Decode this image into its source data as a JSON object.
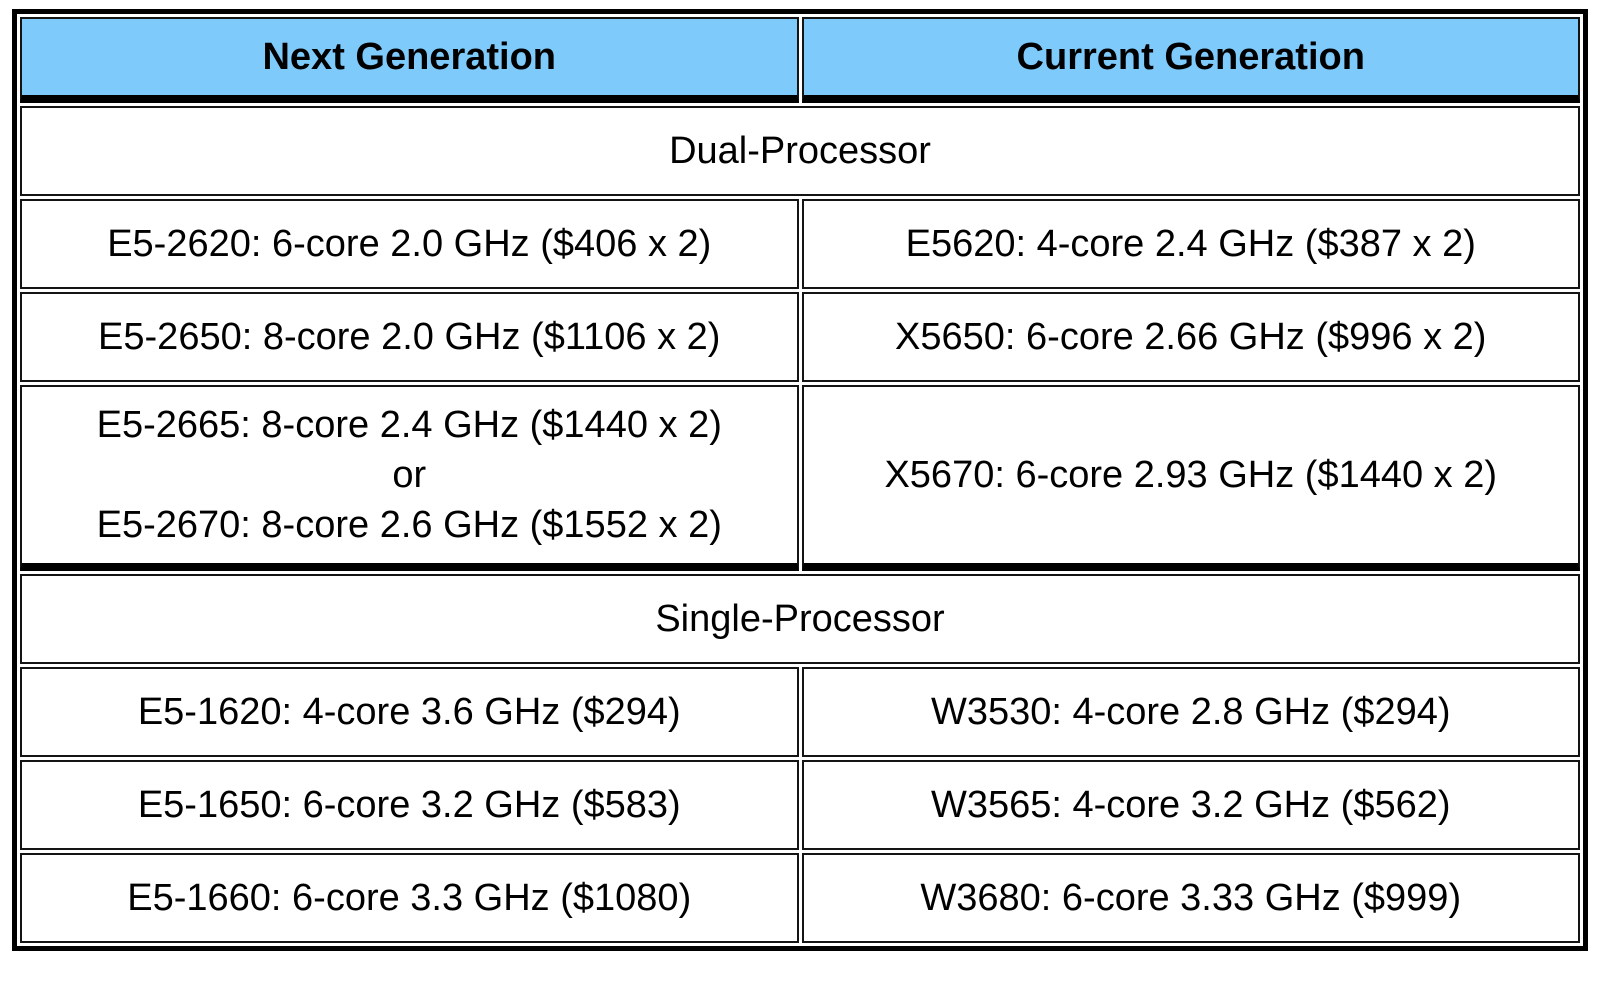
{
  "chart_data": {
    "type": "table",
    "columns": [
      "Next Generation",
      "Current Generation"
    ],
    "sections": [
      {
        "title": "Dual-Processor",
        "rows": [
          {
            "next": "E5-2620: 6-core 2.0 GHz ($406 x 2)",
            "current": "E5620: 4-core 2.4 GHz ($387 x 2)"
          },
          {
            "next": "E5-2650: 8-core 2.0 GHz ($1106 x 2)",
            "current": "X5650: 6-core 2.66 GHz ($996 x 2)"
          },
          {
            "next_lines": [
              "E5-2665: 8-core 2.4 GHz ($1440 x 2)",
              "or",
              "E5-2670: 8-core 2.6 GHz ($1552 x 2)"
            ],
            "current": "X5670: 6-core 2.93 GHz ($1440 x 2)"
          }
        ]
      },
      {
        "title": "Single-Processor",
        "rows": [
          {
            "next": "E5-1620: 4-core 3.6 GHz ($294)",
            "current": "W3530: 4-core 2.8 GHz ($294)"
          },
          {
            "next": "E5-1650: 6-core 3.2 GHz ($583)",
            "current": "W3565: 4-core 3.2 GHz ($562)"
          },
          {
            "next": "E5-1660: 6-core 3.3 GHz ($1080)",
            "current": "W3680: 6-core 3.33 GHz ($999)"
          }
        ]
      }
    ],
    "colors": {
      "header_bg": "#7dcafb",
      "border": "#000000",
      "cell_bg": "#ffffff",
      "text": "#000000"
    },
    "layout": {
      "grid": "on",
      "column_split": "50/50",
      "section_separator": "thick-black-rule"
    }
  }
}
